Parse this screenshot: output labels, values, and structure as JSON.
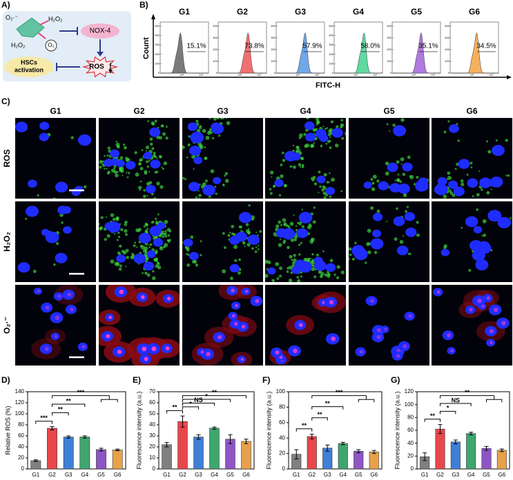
{
  "panel_a": {
    "label": "A)",
    "superoxide": "O₂·⁻",
    "h2o2_top": "H₂O₂",
    "h2o2_left": "H₂O₂",
    "o2": "O₂",
    "nox4": "NOX-4",
    "ros": "ROS",
    "hsc_line1": "HSCs",
    "hsc_line2": "activation"
  },
  "panel_b": {
    "label": "B)",
    "ylabel": "Count",
    "xlabel": "FITC-H",
    "plots": [
      {
        "name": "G1",
        "percent": "15.1%",
        "color": "#7a7a7a",
        "yticks": [
          0,
          100,
          200,
          300,
          400,
          500
        ],
        "xticks": [
          "10⁶",
          "10⁷"
        ]
      },
      {
        "name": "G2",
        "percent": "73.8%",
        "color": "#f07070",
        "yticks": [
          0,
          100,
          200,
          300,
          400
        ],
        "xticks": [
          "10⁶",
          "10⁷"
        ]
      },
      {
        "name": "G3",
        "percent": "57.9%",
        "color": "#6fa8e8",
        "yticks": [
          0,
          100,
          200,
          300,
          400
        ],
        "xticks": [
          "10⁶",
          "10⁷"
        ]
      },
      {
        "name": "G4",
        "percent": "58.0%",
        "color": "#5fd9a0",
        "yticks": [
          0,
          100,
          200,
          300,
          400,
          500
        ],
        "xticks": [
          "10⁶",
          "10⁷"
        ]
      },
      {
        "name": "G5",
        "percent": "35.1%",
        "color": "#b07ae0",
        "yticks": [
          0,
          100,
          200,
          300,
          400
        ],
        "xticks": [
          "10⁶",
          "10⁷"
        ]
      },
      {
        "name": "G6",
        "percent": "34.5%",
        "color": "#f5b060",
        "yticks": [
          0,
          200,
          400,
          600,
          800
        ],
        "xticks": [
          "10⁶",
          "10⁷"
        ]
      }
    ]
  },
  "panel_c": {
    "label": "C)",
    "columns": [
      "G1",
      "G2",
      "G3",
      "G4",
      "G5",
      "G6"
    ],
    "rows": [
      "ROS",
      "H₂O₂",
      "O₂·⁻"
    ]
  },
  "chart_data": [
    {
      "type": "bar",
      "panel_label": "D)",
      "ylabel": "Relative ROS (%)",
      "categories": [
        "G1",
        "G2",
        "G3",
        "G4",
        "G5",
        "G6"
      ],
      "values": [
        15.1,
        73.8,
        57.9,
        58.0,
        35.1,
        34.5
      ],
      "errors": [
        1.5,
        3,
        2,
        2,
        2.5,
        1.5
      ],
      "colors": [
        "#808080",
        "#e8474b",
        "#3f7fd6",
        "#3fa66e",
        "#8e55c6",
        "#e8a14a"
      ],
      "ylim": [
        0,
        140
      ],
      "yticks": [
        0,
        20,
        40,
        60,
        80,
        100,
        120,
        140
      ],
      "brackets": [
        {
          "from": "G1",
          "to": "G2",
          "label": "***"
        },
        {
          "from": "G2",
          "to": "G3",
          "label": "**"
        },
        {
          "from": "G2",
          "to": "G4",
          "label": "**"
        },
        {
          "from": "G2",
          "to": [
            "G5",
            "G6"
          ],
          "label": "***"
        }
      ]
    },
    {
      "type": "bar",
      "panel_label": "E)",
      "ylabel": "Fluorescence intensity (a.u.)",
      "categories": [
        "G1",
        "G2",
        "G3",
        "G4",
        "G5",
        "G6"
      ],
      "values": [
        22,
        43,
        29,
        37,
        27,
        25
      ],
      "errors": [
        2,
        5,
        2,
        1,
        4,
        2
      ],
      "colors": [
        "#808080",
        "#e8474b",
        "#3f7fd6",
        "#3fa66e",
        "#8e55c6",
        "#e8a14a"
      ],
      "ylim": [
        0,
        70
      ],
      "yticks": [
        0,
        10,
        20,
        30,
        40,
        50,
        60,
        70
      ],
      "brackets": [
        {
          "from": "G1",
          "to": "G2",
          "label": "**"
        },
        {
          "from": "G2",
          "to": "G3",
          "label": "*"
        },
        {
          "from": "G2",
          "to": "G4",
          "label": "NS"
        },
        {
          "from": "G2",
          "to": "G5",
          "label": "*"
        },
        {
          "from": "G2",
          "to": "G6",
          "label": "**"
        }
      ]
    },
    {
      "type": "bar",
      "panel_label": "F)",
      "ylabel": "Fluorescence intensity (a.u.)",
      "categories": [
        "G1",
        "G2",
        "G3",
        "G4",
        "G5",
        "G6"
      ],
      "values": [
        19,
        42,
        27,
        33,
        23,
        22
      ],
      "errors": [
        6,
        3,
        4,
        1.5,
        2,
        2
      ],
      "colors": [
        "#808080",
        "#e8474b",
        "#3f7fd6",
        "#3fa66e",
        "#8e55c6",
        "#e8a14a"
      ],
      "ylim": [
        0,
        100
      ],
      "yticks": [
        0,
        20,
        40,
        60,
        80,
        100
      ],
      "brackets": [
        {
          "from": "G1",
          "to": "G2",
          "label": "**"
        },
        {
          "from": "G2",
          "to": "G3",
          "label": "**"
        },
        {
          "from": "G2",
          "to": "G4",
          "label": "**"
        },
        {
          "from": "G2",
          "to": [
            "G5",
            "G6"
          ],
          "label": "***"
        }
      ]
    },
    {
      "type": "bar",
      "panel_label": "G)",
      "ylabel": "Fluorescence intensity (a.u.)",
      "categories": [
        "G1",
        "G2",
        "G3",
        "G4",
        "G5",
        "G6"
      ],
      "values": [
        19,
        62,
        42,
        55,
        32,
        29
      ],
      "errors": [
        6,
        7,
        3,
        2,
        3,
        2
      ],
      "colors": [
        "#808080",
        "#e8474b",
        "#3f7fd6",
        "#3fa66e",
        "#8e55c6",
        "#e8a14a"
      ],
      "ylim": [
        0,
        120
      ],
      "yticks": [
        0,
        20,
        40,
        60,
        80,
        100,
        120
      ],
      "brackets": [
        {
          "from": "G1",
          "to": "G2",
          "label": "**"
        },
        {
          "from": "G2",
          "to": "G3",
          "label": "*"
        },
        {
          "from": "G2",
          "to": "G4",
          "label": "NS"
        },
        {
          "from": "G2",
          "to": [
            "G5",
            "G6"
          ],
          "label": "**"
        }
      ]
    }
  ]
}
